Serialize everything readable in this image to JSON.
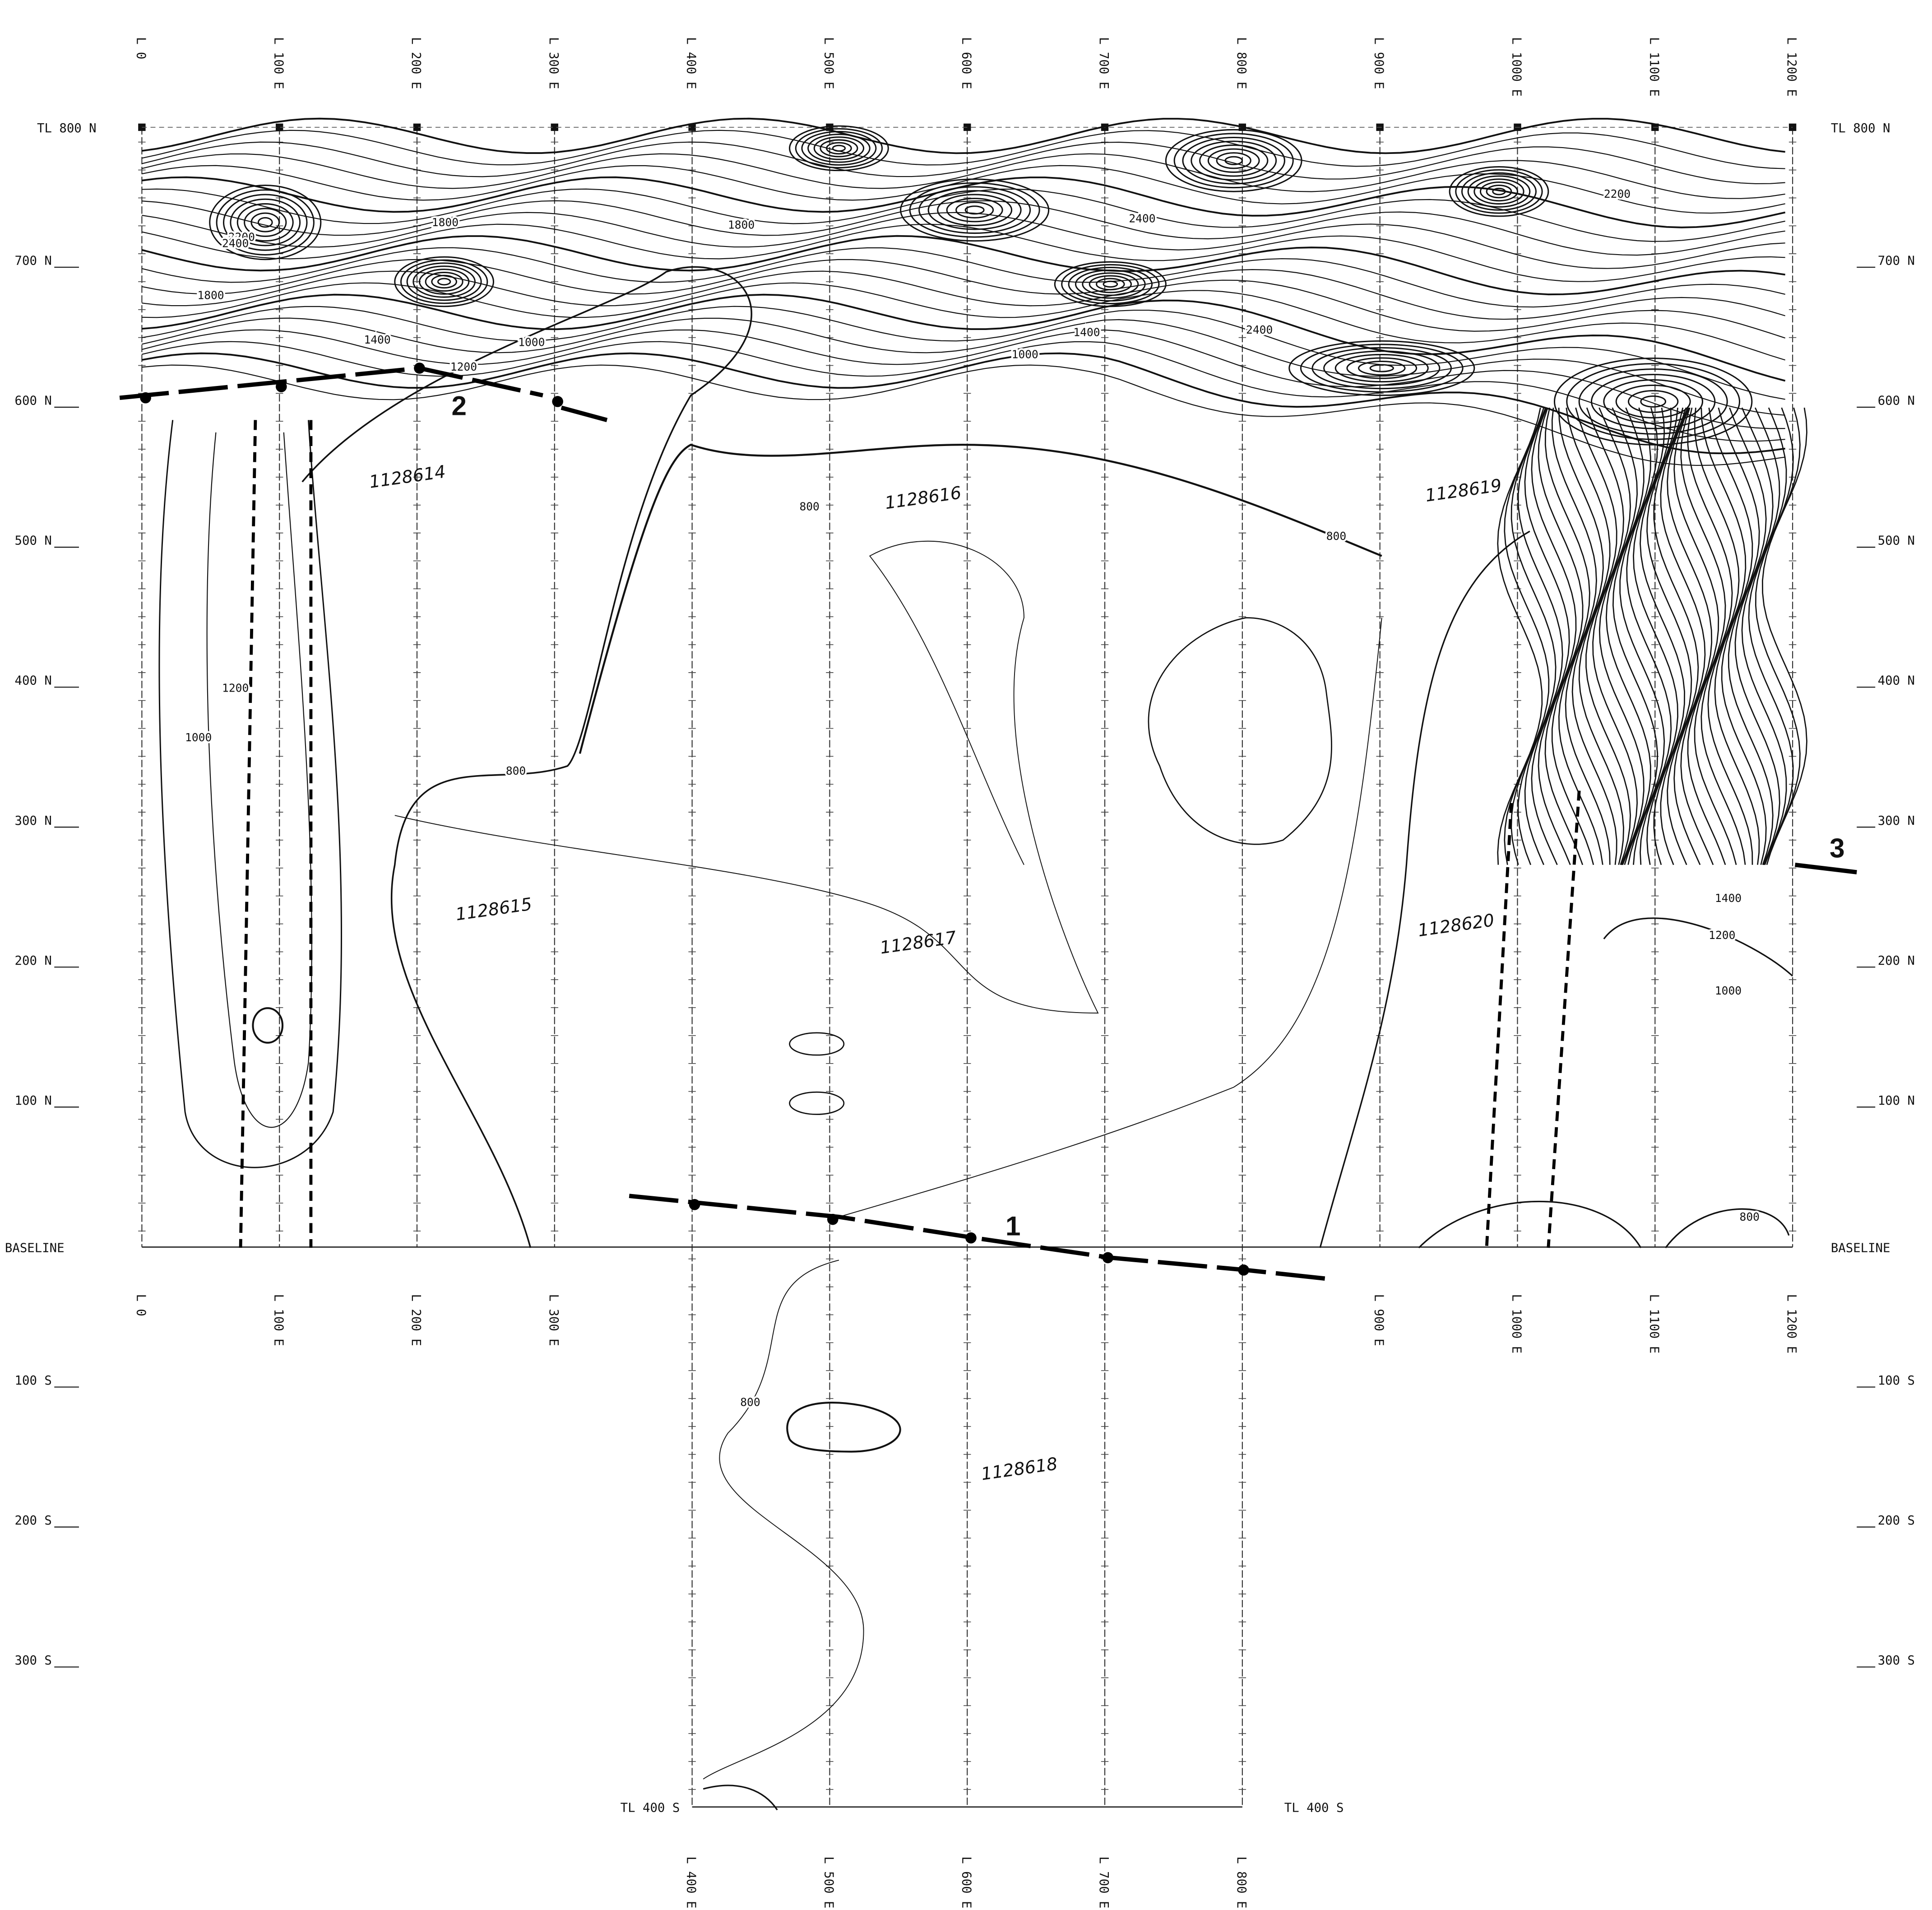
{
  "map": {
    "lines": [
      "L 0",
      "L 100 E",
      "L 200 E",
      "L 300 E",
      "L 400 E",
      "L 500 E",
      "L 600 E",
      "L 700 E",
      "L 800 E",
      "L 900 E",
      "L 1000 E",
      "L 1100 E",
      "L 1200 E"
    ],
    "stations": [
      "TL 800 N",
      "700 N",
      "600 N",
      "500 N",
      "400 N",
      "300 N",
      "200 N",
      "100 N",
      "BASELINE",
      "100 S",
      "200 S",
      "300 S"
    ],
    "south_tie_line": "TL 400 S",
    "claims": [
      "1128614",
      "1128615",
      "1128616",
      "1128617",
      "1128618",
      "1128619",
      "1128620"
    ],
    "contour_labels": [
      "800",
      "1000",
      "1200",
      "1400",
      "1800",
      "2200",
      "2400"
    ],
    "markers": [
      "1",
      "2",
      "3"
    ]
  }
}
